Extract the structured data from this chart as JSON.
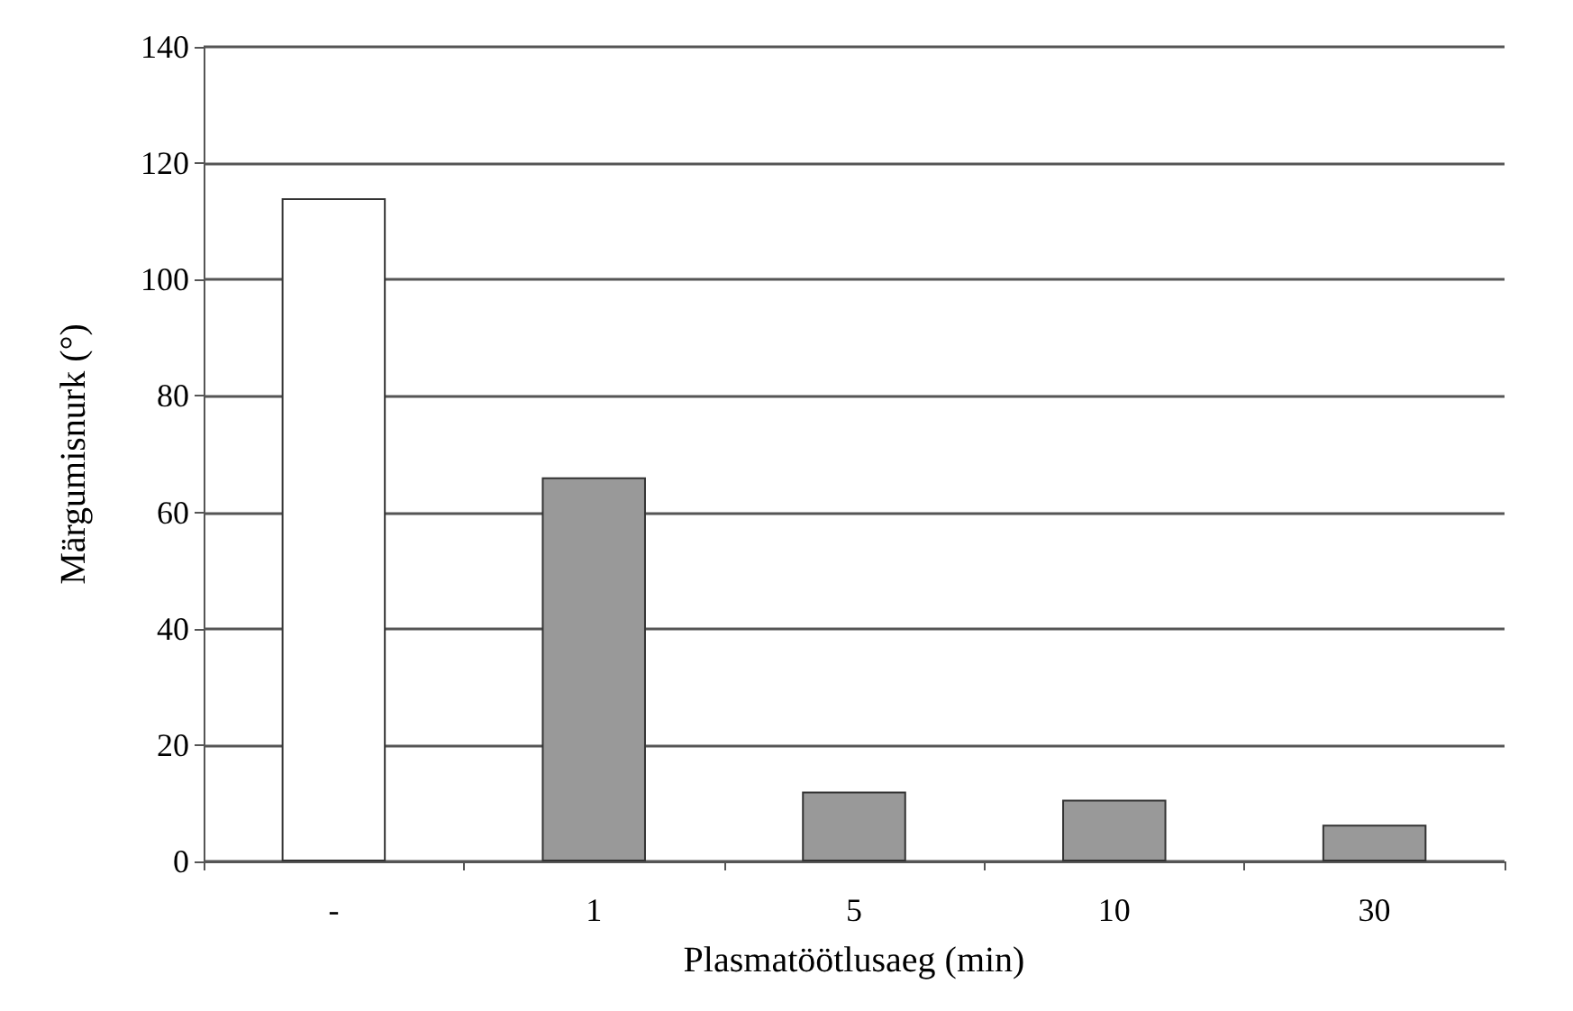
{
  "chart_data": {
    "type": "bar",
    "xlabel": "Plasmatöötlusaeg (min)",
    "ylabel": "Märgumisnurk (°)",
    "categories": [
      "-",
      "1",
      "5",
      "10",
      "30"
    ],
    "values": [
      114,
      66,
      12,
      10.6,
      6.3
    ],
    "colors": [
      "#ffffff",
      "#999999",
      "#999999",
      "#999999",
      "#999999"
    ],
    "ylim": [
      0,
      140
    ],
    "yticks": [
      0,
      20,
      40,
      60,
      80,
      100,
      120,
      140
    ],
    "grid": "y"
  }
}
